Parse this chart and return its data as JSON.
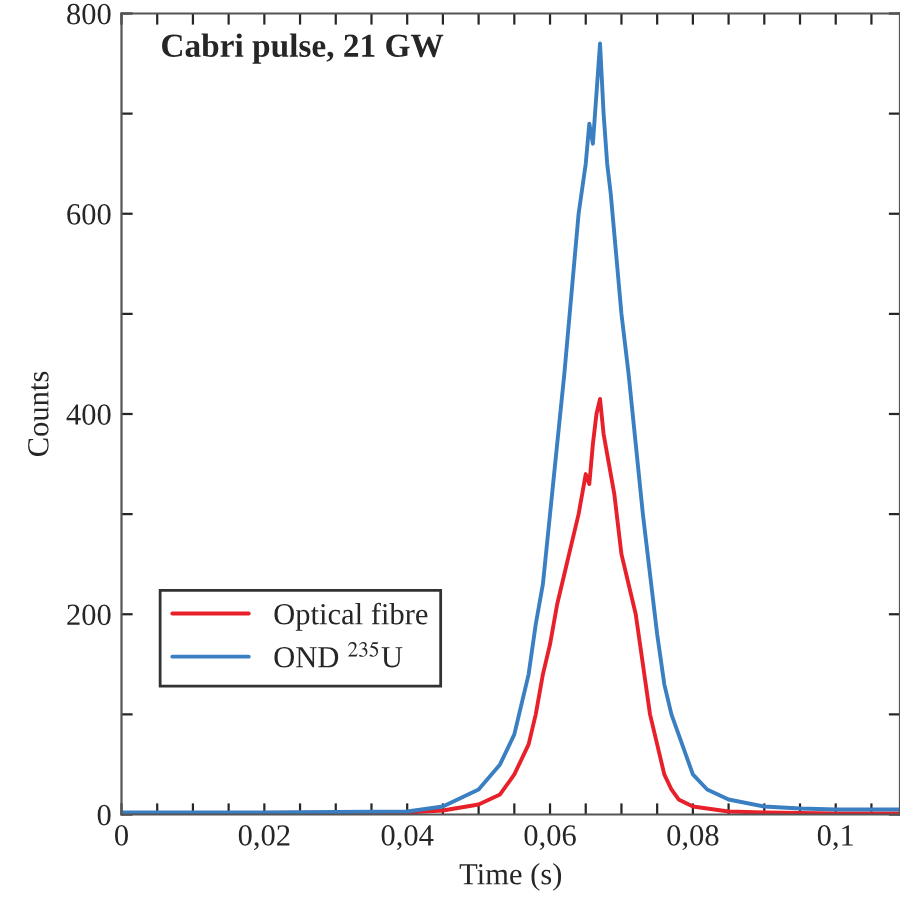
{
  "chart_data": {
    "type": "line",
    "title": "Cabri pulse, 21 GW",
    "xlabel": "Time (s)",
    "ylabel": "Counts",
    "xlim": [
      0,
      0.109
    ],
    "ylim": [
      0,
      800
    ],
    "xticks": [
      0,
      {
        "value": 0.005,
        "label": null
      },
      {
        "value": 0.01,
        "label": null
      },
      {
        "value": 0.015,
        "label": null
      },
      {
        "value": 0.02,
        "label": "0,02"
      },
      {
        "value": 0.025,
        "label": null
      },
      {
        "value": 0.03,
        "label": null
      },
      {
        "value": 0.035,
        "label": null
      },
      {
        "value": 0.04,
        "label": "0,04"
      },
      {
        "value": 0.045,
        "label": null
      },
      {
        "value": 0.05,
        "label": null
      },
      {
        "value": 0.055,
        "label": null
      },
      {
        "value": 0.06,
        "label": "0,06"
      },
      {
        "value": 0.065,
        "label": null
      },
      {
        "value": 0.07,
        "label": null
      },
      {
        "value": 0.075,
        "label": null
      },
      {
        "value": 0.08,
        "label": "0,08"
      },
      {
        "value": 0.085,
        "label": null
      },
      {
        "value": 0.09,
        "label": null
      },
      {
        "value": 0.095,
        "label": null
      },
      {
        "value": 0.1,
        "label": "0,1"
      },
      {
        "value": 0.105,
        "label": null
      }
    ],
    "yticks": [
      0,
      {
        "value": 100,
        "label": null
      },
      200,
      {
        "value": 300,
        "label": null
      },
      400,
      {
        "value": 500,
        "label": null
      },
      600,
      {
        "value": 700,
        "label": null
      },
      800
    ],
    "legend": "left",
    "grid": false,
    "marker": "none",
    "line_style": "solid",
    "series": [
      {
        "name": "Optical fibre",
        "color": "#e8202a",
        "x": [
          0,
          0.04,
          0.045,
          0.05,
          0.053,
          0.055,
          0.057,
          0.058,
          0.059,
          0.06,
          0.061,
          0.062,
          0.063,
          0.064,
          0.065,
          0.0655,
          0.066,
          0.0665,
          0.067,
          0.0675,
          0.068,
          0.069,
          0.07,
          0.071,
          0.072,
          0.073,
          0.074,
          0.075,
          0.076,
          0.077,
          0.078,
          0.08,
          0.085,
          0.09,
          0.1,
          0.109
        ],
        "values": [
          1,
          2,
          4,
          10,
          20,
          40,
          70,
          100,
          140,
          170,
          210,
          240,
          270,
          300,
          340,
          330,
          370,
          400,
          415,
          380,
          360,
          320,
          260,
          230,
          200,
          150,
          100,
          70,
          40,
          25,
          15,
          8,
          3,
          2,
          1,
          1
        ]
      },
      {
        "name": "OND $^{235}$U",
        "color": "#3a7fc1",
        "x": [
          0,
          0.02,
          0.04,
          0.045,
          0.05,
          0.053,
          0.055,
          0.057,
          0.058,
          0.059,
          0.06,
          0.061,
          0.062,
          0.063,
          0.064,
          0.065,
          0.0655,
          0.066,
          0.0665,
          0.067,
          0.0675,
          0.068,
          0.0685,
          0.069,
          0.07,
          0.071,
          0.072,
          0.073,
          0.074,
          0.075,
          0.076,
          0.077,
          0.078,
          0.079,
          0.08,
          0.082,
          0.085,
          0.09,
          0.095,
          0.1,
          0.109
        ],
        "values": [
          2,
          2,
          3,
          8,
          25,
          50,
          80,
          140,
          190,
          230,
          300,
          370,
          440,
          520,
          600,
          650,
          690,
          670,
          720,
          770,
          700,
          650,
          620,
          580,
          500,
          440,
          370,
          300,
          240,
          180,
          130,
          100,
          80,
          60,
          40,
          25,
          15,
          8,
          6,
          5,
          5
        ]
      }
    ]
  }
}
